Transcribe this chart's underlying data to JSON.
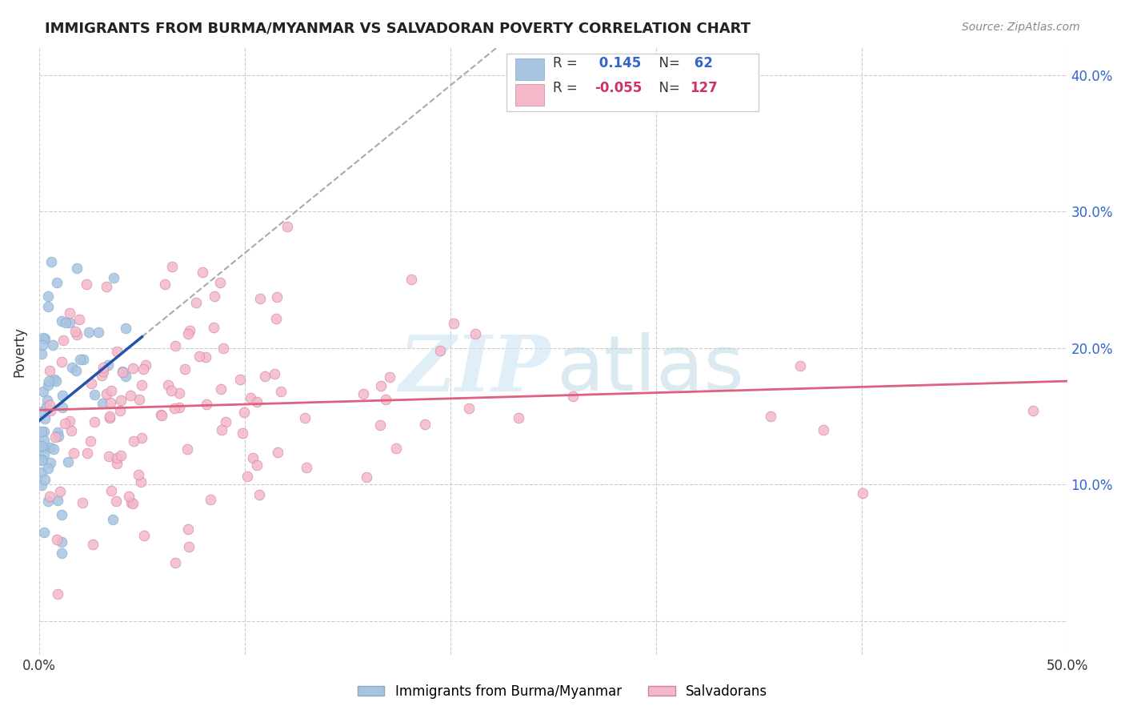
{
  "title": "IMMIGRANTS FROM BURMA/MYANMAR VS SALVADORAN POVERTY CORRELATION CHART",
  "source": "Source: ZipAtlas.com",
  "ylabel": "Poverty",
  "xlim": [
    0.0,
    0.5
  ],
  "ylim": [
    -0.025,
    0.42
  ],
  "r_blue": 0.145,
  "n_blue": 62,
  "r_pink": -0.055,
  "n_pink": 127,
  "blue_color": "#a8c4e0",
  "pink_color": "#f4b8c8",
  "blue_edge_color": "#7badd0",
  "pink_edge_color": "#d080a0",
  "blue_line_color": "#2255aa",
  "pink_line_color": "#e06080",
  "dashed_line_color": "#aaaaaa",
  "right_tick_color": "#3366cc",
  "title_color": "#222222",
  "source_color": "#888888",
  "ylabel_color": "#333333",
  "grid_color": "#cccccc",
  "legend_edge_color": "#cccccc"
}
